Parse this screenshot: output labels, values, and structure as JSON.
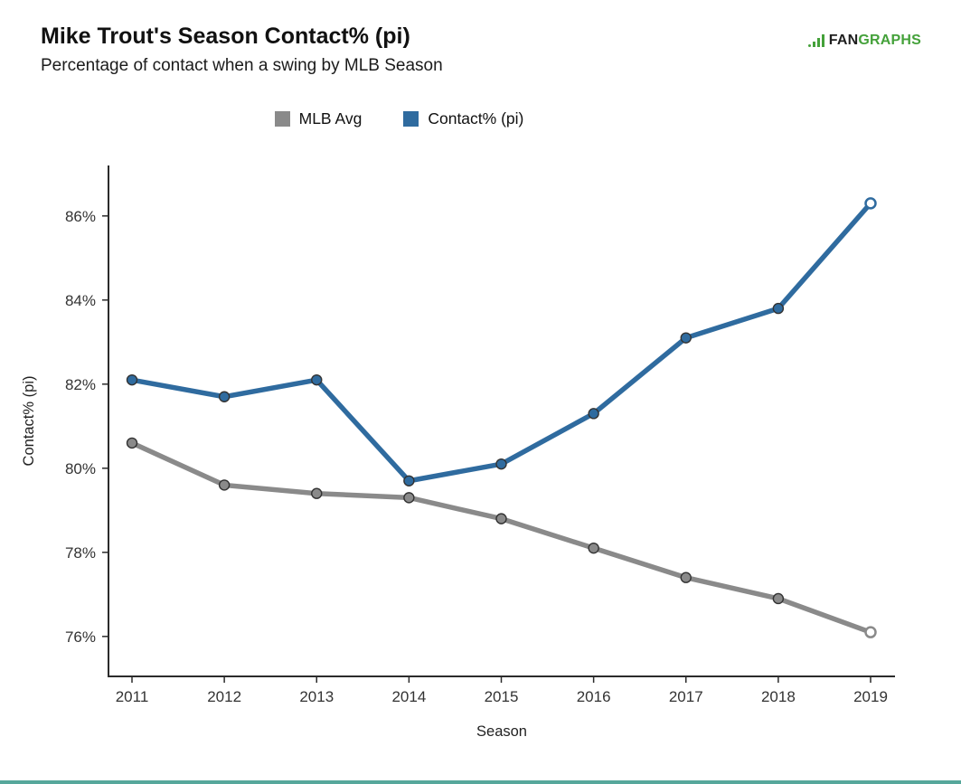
{
  "header": {
    "logo_fan": "FAN",
    "logo_graphs": "GRAPHS"
  },
  "colors": {
    "logo_green": "#44a13a",
    "logo_dark": "#1f1f1f",
    "axis": "#2b2b2b",
    "bottom_bar": "#56a79b"
  },
  "chart_data": {
    "type": "line",
    "title": "Mike Trout's Season Contact% (pi)",
    "subtitle": "Percentage of contact when a swing by MLB Season",
    "xlabel": "Season",
    "ylabel": "Contact% (pi)",
    "categories": [
      "2011",
      "2012",
      "2013",
      "2014",
      "2015",
      "2016",
      "2017",
      "2018",
      "2019"
    ],
    "series": [
      {
        "name": "MLB Avg",
        "color": "#8a8a8a",
        "open_last": true,
        "values": [
          80.6,
          79.6,
          79.4,
          79.3,
          78.8,
          78.1,
          77.4,
          76.9,
          76.1
        ]
      },
      {
        "name": "Contact% (pi)",
        "color": "#2f6b9f",
        "open_last": true,
        "values": [
          82.1,
          81.7,
          82.1,
          79.7,
          80.1,
          81.3,
          83.1,
          83.8,
          86.3
        ]
      }
    ],
    "ylim": [
      75.05,
      87.2
    ],
    "yticks": [
      {
        "value": 76,
        "label": "76%"
      },
      {
        "value": 78,
        "label": "78%"
      },
      {
        "value": 80,
        "label": "80%"
      },
      {
        "value": 82,
        "label": "82%"
      },
      {
        "value": 84,
        "label": "84%"
      },
      {
        "value": 86,
        "label": "86%"
      }
    ],
    "grid": false,
    "legend_position": "top"
  }
}
